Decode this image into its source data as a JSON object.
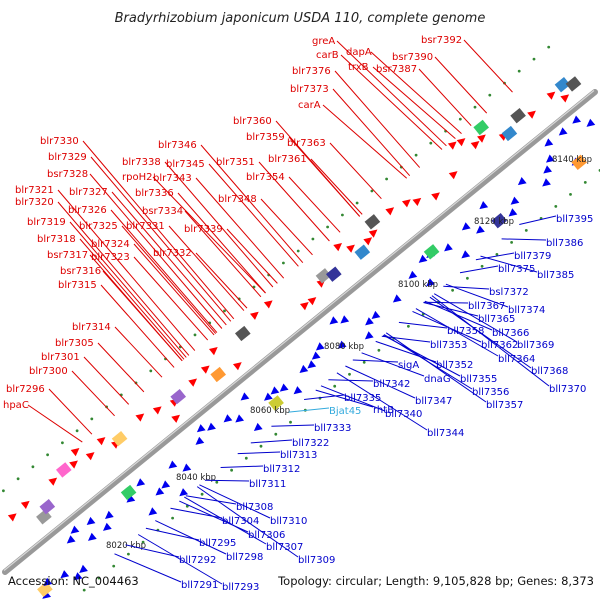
{
  "title": "Bradyrhizobium japonicum USDA 110, complete genome",
  "accession": "Accession: NC_004463",
  "summary": "Topology: circular; Length: 9,105,828 bp; Genes: 8,373",
  "colors": {
    "forward_label": "#dd0000",
    "reverse_label": "#0000cc",
    "rna_label": "#33aadd",
    "backbone": "#999999",
    "forward_gene": "#ff0000",
    "reverse_gene": "#0000ee"
  },
  "scale_labels": [
    "8020 kbp",
    "8040 kbp",
    "8060 kbp",
    "8080 kbp",
    "8100 kbp",
    "8120 kbp",
    "8140 kbp"
  ],
  "forward_genes": [
    {
      "name": "greA",
      "strand": "forward"
    },
    {
      "name": "carB",
      "strand": "forward"
    },
    {
      "name": "dapA",
      "strand": "forward"
    },
    {
      "name": "bsr7392",
      "strand": "forward"
    },
    {
      "name": "bsr7390",
      "strand": "forward"
    },
    {
      "name": "trxB",
      "strand": "forward"
    },
    {
      "name": "bsr7387",
      "strand": "forward"
    },
    {
      "name": "blr7376",
      "strand": "forward"
    },
    {
      "name": "blr7373",
      "strand": "forward"
    },
    {
      "name": "carA",
      "strand": "forward"
    },
    {
      "name": "blr7360",
      "strand": "forward"
    },
    {
      "name": "blr7359",
      "strand": "forward"
    },
    {
      "name": "blr7363",
      "strand": "forward"
    },
    {
      "name": "blr7361",
      "strand": "forward"
    },
    {
      "name": "blr7330",
      "strand": "forward"
    },
    {
      "name": "blr7346",
      "strand": "forward"
    },
    {
      "name": "blr7329",
      "strand": "forward"
    },
    {
      "name": "blr7338",
      "strand": "forward"
    },
    {
      "name": "blr7345",
      "strand": "forward"
    },
    {
      "name": "blr7351",
      "strand": "forward"
    },
    {
      "name": "rpoH2",
      "strand": "forward"
    },
    {
      "name": "blr7343",
      "strand": "forward"
    },
    {
      "name": "blr7354",
      "strand": "forward"
    },
    {
      "name": "bsr7328",
      "strand": "forward"
    },
    {
      "name": "blr7321",
      "strand": "forward"
    },
    {
      "name": "blr7327",
      "strand": "forward"
    },
    {
      "name": "blr7336",
      "strand": "forward"
    },
    {
      "name": "blr7320",
      "strand": "forward"
    },
    {
      "name": "blr7348",
      "strand": "forward"
    },
    {
      "name": "blr7326",
      "strand": "forward"
    },
    {
      "name": "bsr7334",
      "strand": "forward"
    },
    {
      "name": "blr7319",
      "strand": "forward"
    },
    {
      "name": "blr7325",
      "strand": "forward"
    },
    {
      "name": "blr7331",
      "strand": "forward"
    },
    {
      "name": "blr7339",
      "strand": "forward"
    },
    {
      "name": "blr7318",
      "strand": "forward"
    },
    {
      "name": "blr7324",
      "strand": "forward"
    },
    {
      "name": "bsr7317",
      "strand": "forward"
    },
    {
      "name": "blr7323",
      "strand": "forward"
    },
    {
      "name": "blr7332",
      "strand": "forward"
    },
    {
      "name": "bsr7316",
      "strand": "forward"
    },
    {
      "name": "blr7315",
      "strand": "forward"
    },
    {
      "name": "blr7314",
      "strand": "forward"
    },
    {
      "name": "blr7305",
      "strand": "forward"
    },
    {
      "name": "blr7301",
      "strand": "forward"
    },
    {
      "name": "blr7300",
      "strand": "forward"
    },
    {
      "name": "blr7296",
      "strand": "forward"
    },
    {
      "name": "hpaC",
      "strand": "forward"
    }
  ],
  "reverse_genes": [
    {
      "name": "bll7395",
      "strand": "reverse"
    },
    {
      "name": "bll7386",
      "strand": "reverse"
    },
    {
      "name": "bll7379",
      "strand": "reverse"
    },
    {
      "name": "bll7375",
      "strand": "reverse"
    },
    {
      "name": "bll7385",
      "strand": "reverse"
    },
    {
      "name": "bsl7372",
      "strand": "reverse"
    },
    {
      "name": "bll7367",
      "strand": "reverse"
    },
    {
      "name": "bll7374",
      "strand": "reverse"
    },
    {
      "name": "bll7365",
      "strand": "reverse"
    },
    {
      "name": "bll7358",
      "strand": "reverse"
    },
    {
      "name": "bll7366",
      "strand": "reverse"
    },
    {
      "name": "bll7353",
      "strand": "reverse"
    },
    {
      "name": "bll7362",
      "strand": "reverse"
    },
    {
      "name": "bll7369",
      "strand": "reverse"
    },
    {
      "name": "bll7364",
      "strand": "reverse"
    },
    {
      "name": "sigA",
      "strand": "reverse"
    },
    {
      "name": "bll7352",
      "strand": "reverse"
    },
    {
      "name": "bll7368",
      "strand": "reverse"
    },
    {
      "name": "dnaG",
      "strand": "reverse"
    },
    {
      "name": "bll7355",
      "strand": "reverse"
    },
    {
      "name": "bll7342",
      "strand": "reverse"
    },
    {
      "name": "bll7356",
      "strand": "reverse"
    },
    {
      "name": "bll7370",
      "strand": "reverse"
    },
    {
      "name": "bll7335",
      "strand": "reverse"
    },
    {
      "name": "bll7347",
      "strand": "reverse"
    },
    {
      "name": "bll7357",
      "strand": "reverse"
    },
    {
      "name": "rhtB",
      "strand": "reverse"
    },
    {
      "name": "bll7340",
      "strand": "reverse"
    },
    {
      "name": "bll7333",
      "strand": "reverse"
    },
    {
      "name": "bll7344",
      "strand": "reverse"
    },
    {
      "name": "bll7322",
      "strand": "reverse"
    },
    {
      "name": "bll7313",
      "strand": "reverse"
    },
    {
      "name": "bll7312",
      "strand": "reverse"
    },
    {
      "name": "bll7311",
      "strand": "reverse"
    },
    {
      "name": "bll7308",
      "strand": "reverse"
    },
    {
      "name": "bll7304",
      "strand": "reverse"
    },
    {
      "name": "bll7310",
      "strand": "reverse"
    },
    {
      "name": "bll7306",
      "strand": "reverse"
    },
    {
      "name": "bll7295",
      "strand": "reverse"
    },
    {
      "name": "bll7307",
      "strand": "reverse"
    },
    {
      "name": "bll7298",
      "strand": "reverse"
    },
    {
      "name": "bll7292",
      "strand": "reverse"
    },
    {
      "name": "bll7309",
      "strand": "reverse"
    },
    {
      "name": "bll7291",
      "strand": "reverse"
    },
    {
      "name": "bll7293",
      "strand": "reverse"
    }
  ],
  "rna_genes": [
    {
      "name": "Bjat45",
      "strand": "reverse"
    }
  ]
}
